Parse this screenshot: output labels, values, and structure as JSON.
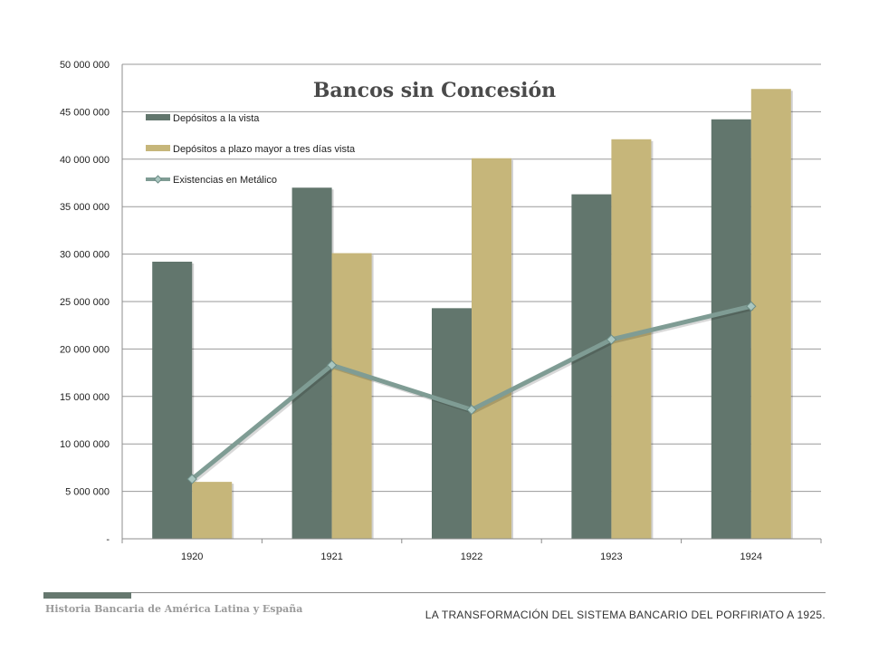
{
  "chart_data": {
    "type": "bar",
    "title": "Bancos sin Concesión",
    "categories": [
      "1920",
      "1921",
      "1922",
      "1923",
      "1924"
    ],
    "ylim": [
      0,
      50000000
    ],
    "yticks": [
      0,
      5000000,
      10000000,
      15000000,
      20000000,
      25000000,
      30000000,
      35000000,
      40000000,
      45000000,
      50000000
    ],
    "ytick_labels": [
      "-",
      "5 000 000",
      "10 000 000",
      "15 000 000",
      "20 000 000",
      "25 000 000",
      "30 000 000",
      "35 000 000",
      "40 000 000",
      "45 000 000",
      "50 000 000"
    ],
    "grid": true,
    "legend_position": "top-left",
    "series": [
      {
        "name": "Depósitos a la vista",
        "type": "bar",
        "color": "#62766d",
        "values": [
          29200000,
          37000000,
          24300000,
          36300000,
          44200000
        ]
      },
      {
        "name": "Depósitos a plazo mayor a tres días vista",
        "type": "bar",
        "color": "#c6b67a",
        "values": [
          6000000,
          30100000,
          40100000,
          42100000,
          47400000
        ]
      },
      {
        "name": "Existencias en Metálico",
        "type": "line",
        "color": "#7f9c94",
        "values": [
          6300000,
          18300000,
          13600000,
          21000000,
          24500000
        ]
      }
    ]
  },
  "footer": {
    "left": "Historia Bancaria de América Latina y España",
    "right": "LA TRANSFORMACIÓN DEL SISTEMA BANCARIO DEL PORFIRIATO A 1925."
  }
}
